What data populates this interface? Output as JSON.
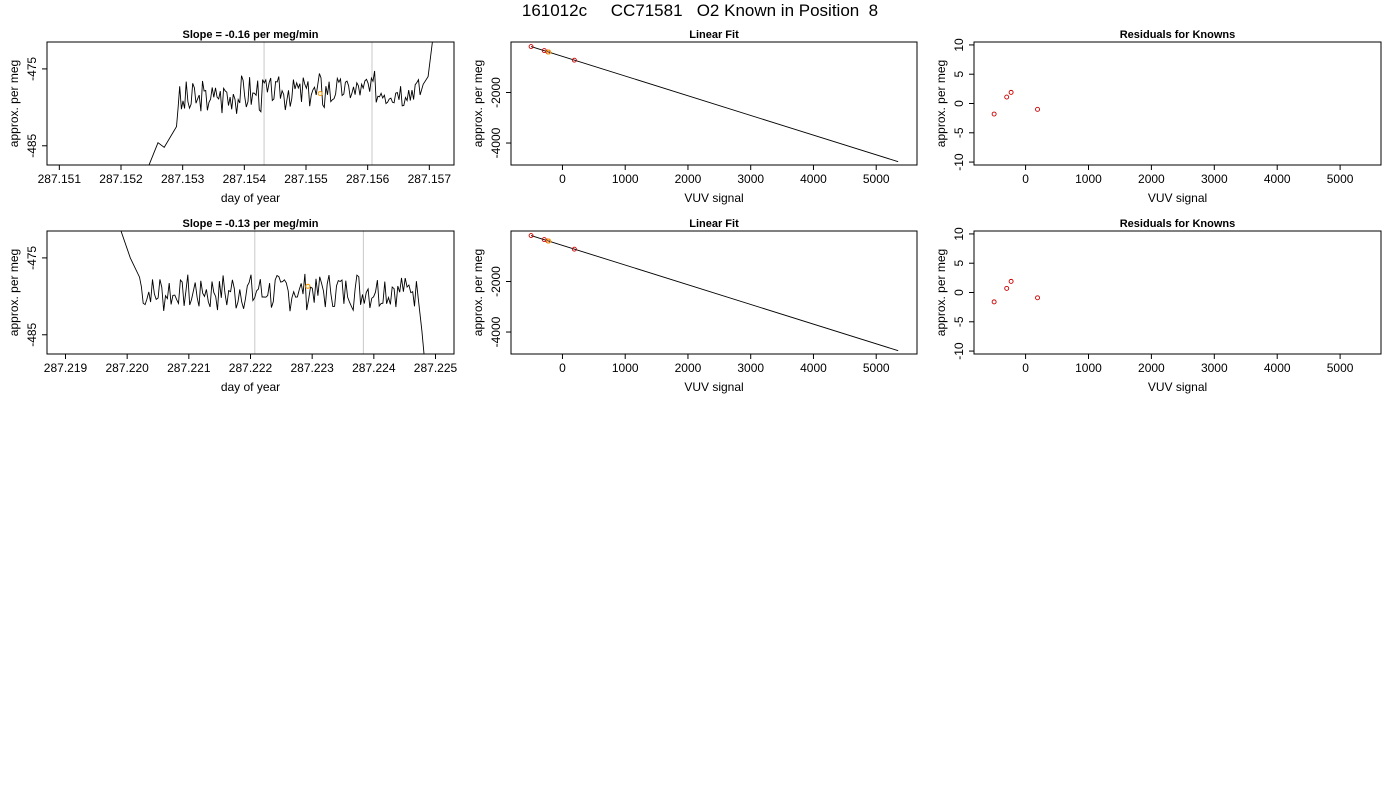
{
  "title": "161012c     CC71581   O2 Known in Position  8",
  "colors": {
    "line": "#000000",
    "grid": "#c8c8c8",
    "point_red": "#cc0000",
    "point_orange": "#ff9900",
    "frame": "#000000"
  },
  "chart_data": [
    {
      "type": "line",
      "title": "Slope =  -0.16  per meg/min",
      "xlabel": "day of year",
      "ylabel": "approx. per meg",
      "xlim": [
        287.1508,
        287.1574
      ],
      "ylim": [
        -487.5,
        -471.5
      ],
      "xticks": [
        287.151,
        287.152,
        287.153,
        287.154,
        287.155,
        287.156,
        287.157
      ],
      "xtick_labels": [
        "287.151",
        "287.152",
        "287.153",
        "287.154",
        "287.155",
        "287.156",
        "287.157"
      ],
      "yticks": [
        -475,
        -485
      ],
      "ytick_labels": [
        "-475",
        "-485"
      ],
      "vlines": [
        287.15432,
        287.15607
      ],
      "trace_start": 287.15245,
      "trace_end": 287.15712,
      "trace_seed": 3,
      "trace_head": [
        [
          287.1514,
          -500
        ],
        [
          287.15245,
          -487.6
        ],
        [
          287.1526,
          -484.6
        ],
        [
          287.1527,
          -485.2
        ],
        [
          287.1529,
          -482.5
        ]
      ],
      "trace_tail": [
        [
          287.15685,
          -478.4
        ],
        [
          287.1569,
          -477.0
        ],
        [
          287.15698,
          -476.0
        ],
        [
          287.15705,
          -471.5
        ],
        [
          287.1572,
          -460
        ]
      ],
      "highlight": [
        {
          "x": 287.15523,
          "y": -478.2
        }
      ]
    },
    {
      "type": "scatter",
      "title": "Linear Fit",
      "xlabel": "VUV signal",
      "ylabel": "approx. per meg",
      "xlim": [
        -820,
        5650
      ],
      "ylim": [
        -4870,
        0
      ],
      "xticks": [
        0,
        1000,
        2000,
        3000,
        4000,
        5000
      ],
      "xtick_labels": [
        "0",
        "1000",
        "2000",
        "3000",
        "4000",
        "5000"
      ],
      "yticks": [
        -2000,
        -4000
      ],
      "ytick_labels": [
        "-2000",
        "-4000"
      ],
      "fit_line": [
        [
          -500,
          -180
        ],
        [
          5350,
          -4740
        ]
      ],
      "points": [
        {
          "x": -500,
          "y": -180,
          "color": "red"
        },
        {
          "x": -290,
          "y": -340,
          "color": "red"
        },
        {
          "x": -230,
          "y": -395,
          "color": "red"
        },
        {
          "x": 190,
          "y": -720,
          "color": "red"
        }
      ],
      "highlight": [
        {
          "x": -220,
          "y": -400
        }
      ]
    },
    {
      "type": "scatter",
      "title": "Residuals for Knowns",
      "xlabel": "VUV signal",
      "ylabel": "approx. per meg",
      "xlim": [
        -820,
        5650
      ],
      "ylim": [
        -10.5,
        10.5
      ],
      "xticks": [
        0,
        1000,
        2000,
        3000,
        4000,
        5000
      ],
      "xtick_labels": [
        "0",
        "1000",
        "2000",
        "3000",
        "4000",
        "5000"
      ],
      "yticks": [
        10,
        5,
        0,
        -5,
        -10
      ],
      "ytick_labels": [
        "10",
        "5",
        "0",
        "-5",
        "-10"
      ],
      "points": [
        {
          "x": -500,
          "y": -1.8,
          "color": "red"
        },
        {
          "x": -300,
          "y": 1.1,
          "color": "red"
        },
        {
          "x": -230,
          "y": 1.9,
          "color": "red"
        },
        {
          "x": 190,
          "y": -1.0,
          "color": "red"
        }
      ]
    },
    {
      "type": "line",
      "title": "Slope =  -0.13  per meg/min",
      "xlabel": "day of year",
      "ylabel": "approx. per meg",
      "xlim": [
        287.2187,
        287.2253
      ],
      "ylim": [
        -487.5,
        -471.5
      ],
      "xticks": [
        287.219,
        287.22,
        287.221,
        287.222,
        287.223,
        287.224,
        287.225
      ],
      "xtick_labels": [
        "287.219",
        "287.220",
        "287.221",
        "287.222",
        "287.223",
        "287.224",
        "287.225"
      ],
      "yticks": [
        -475,
        -485
      ],
      "ytick_labels": [
        "-475",
        "-485"
      ],
      "vlines": [
        287.22207,
        287.22383
      ],
      "trace_start": 287.2202,
      "trace_end": 287.22465,
      "trace_seed": 7,
      "trace_head": [
        [
          287.2199,
          -471.5
        ],
        [
          287.22005,
          -475.0
        ],
        [
          287.2202,
          -477.5
        ]
      ],
      "trace_tail": [
        [
          287.22472,
          -480.2
        ],
        [
          287.22478,
          -484.5
        ],
        [
          287.2249,
          -495
        ]
      ],
      "highlight": [
        {
          "x": 287.22293,
          "y": -478.7
        }
      ]
    },
    {
      "type": "scatter",
      "title": "Linear Fit",
      "xlabel": "VUV signal",
      "ylabel": "approx. per meg",
      "xlim": [
        -820,
        5650
      ],
      "ylim": [
        -4870,
        0
      ],
      "xticks": [
        0,
        1000,
        2000,
        3000,
        4000,
        5000
      ],
      "xtick_labels": [
        "0",
        "1000",
        "2000",
        "3000",
        "4000",
        "5000"
      ],
      "yticks": [
        -2000,
        -4000
      ],
      "ytick_labels": [
        "-2000",
        "-4000"
      ],
      "fit_line": [
        [
          -500,
          -180
        ],
        [
          5350,
          -4740
        ]
      ],
      "points": [
        {
          "x": -500,
          "y": -180,
          "color": "red"
        },
        {
          "x": -290,
          "y": -340,
          "color": "red"
        },
        {
          "x": -230,
          "y": -395,
          "color": "red"
        },
        {
          "x": 190,
          "y": -720,
          "color": "red"
        }
      ],
      "highlight": [
        {
          "x": -220,
          "y": -400
        }
      ]
    },
    {
      "type": "scatter",
      "title": "Residuals for Knowns",
      "xlabel": "VUV signal",
      "ylabel": "approx. per meg",
      "xlim": [
        -820,
        5650
      ],
      "ylim": [
        -10.5,
        10.5
      ],
      "xticks": [
        0,
        1000,
        2000,
        3000,
        4000,
        5000
      ],
      "xtick_labels": [
        "0",
        "1000",
        "2000",
        "3000",
        "4000",
        "5000"
      ],
      "yticks": [
        10,
        5,
        0,
        -5,
        -10
      ],
      "ytick_labels": [
        "10",
        "5",
        "0",
        "-5",
        "-10"
      ],
      "points": [
        {
          "x": -500,
          "y": -1.6,
          "color": "red"
        },
        {
          "x": -300,
          "y": 0.7,
          "color": "red"
        },
        {
          "x": -230,
          "y": 1.9,
          "color": "red"
        },
        {
          "x": 190,
          "y": -0.9,
          "color": "red"
        }
      ]
    }
  ]
}
